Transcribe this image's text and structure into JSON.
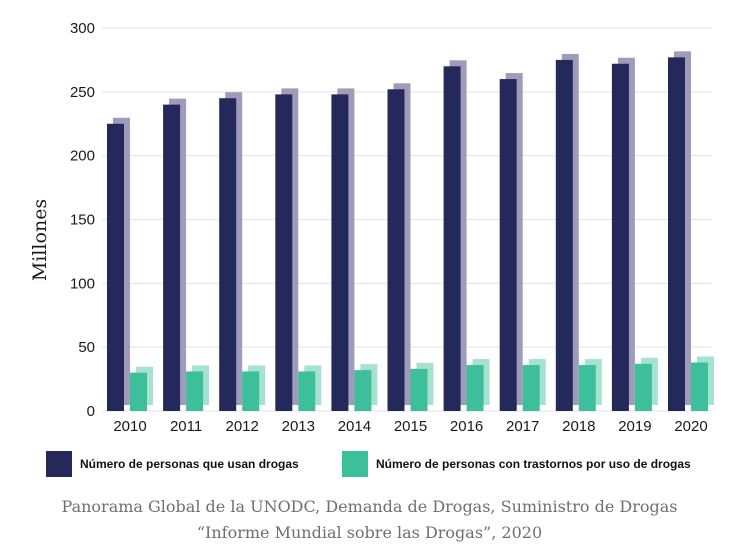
{
  "chart_data": {
    "type": "bar",
    "categories": [
      "2010",
      "2011",
      "2012",
      "2013",
      "2014",
      "2015",
      "2016",
      "2017",
      "2018",
      "2019",
      "2020"
    ],
    "series": [
      {
        "name": "Número de personas que usan drogas",
        "color": "#25285a",
        "shadow_color": "#9e9cba",
        "values": [
          225,
          240,
          245,
          248,
          248,
          252,
          270,
          260,
          275,
          272,
          277
        ]
      },
      {
        "name": "Número de personas con trastornos por uso de drogas",
        "color": "#3ebf9b",
        "shadow_color": "#a6e2cf",
        "values": [
          30,
          31,
          31,
          31,
          32,
          33,
          36,
          36,
          36,
          37,
          38
        ]
      }
    ],
    "ylabel": "Millones",
    "xlabel": "",
    "ylim": [
      0,
      300
    ],
    "yticks": [
      0,
      50,
      100,
      150,
      200,
      250,
      300
    ],
    "grid": true,
    "legend_position": "bottom"
  },
  "caption": {
    "line1": "Panorama Global de la UNODC, Demanda de Drogas, Suministro de Drogas",
    "line2": "“Informe Mundial sobre las Drogas”, 2020"
  }
}
